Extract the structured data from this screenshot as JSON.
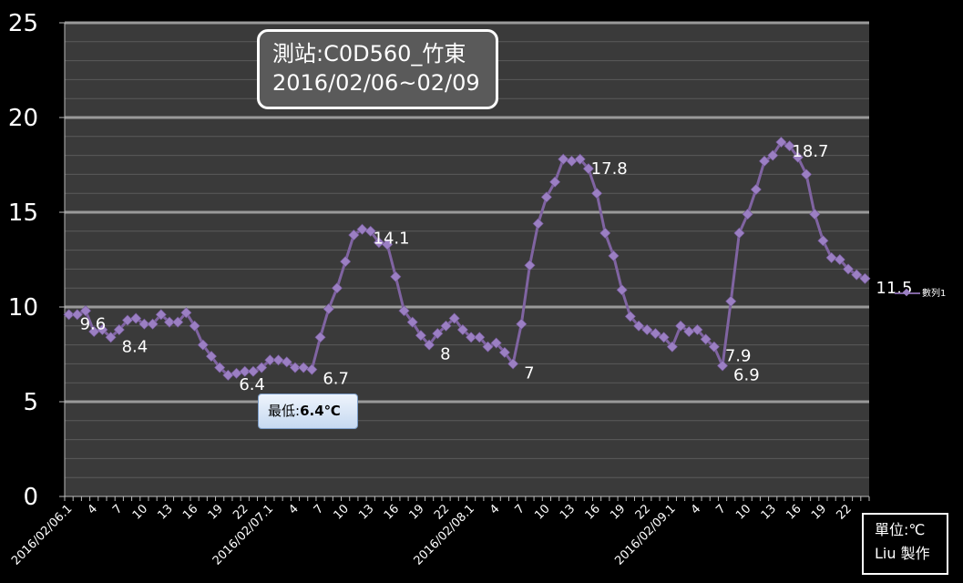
{
  "chart_data": {
    "type": "line",
    "title": "",
    "xlabel": "",
    "ylabel": "",
    "ylim": [
      0,
      25
    ],
    "y_ticks": [
      "0",
      "5",
      "10",
      "15",
      "20",
      "25"
    ],
    "grid": true,
    "x_tick_labels": [
      "2016/02/06.1",
      "4",
      "7",
      "10",
      "13",
      "16",
      "19",
      "22",
      "2016/02/07.1",
      "4",
      "7",
      "10",
      "13",
      "16",
      "19",
      "22",
      "2016/02/08.1",
      "4",
      "7",
      "10",
      "13",
      "16",
      "19",
      "22",
      "2016/02/09.1",
      "4",
      "7",
      "10",
      "13",
      "16",
      "19",
      "22"
    ],
    "series": [
      {
        "name": "數列1",
        "color": "#8064a2",
        "values": [
          9.6,
          9.6,
          9.8,
          8.7,
          8.8,
          8.4,
          8.8,
          9.3,
          9.4,
          9.1,
          9.1,
          9.6,
          9.2,
          9.2,
          9.7,
          9.0,
          8.0,
          7.4,
          6.8,
          6.4,
          6.5,
          6.6,
          6.6,
          6.8,
          7.2,
          7.2,
          7.1,
          6.8,
          6.8,
          6.7,
          8.4,
          9.9,
          11.0,
          12.4,
          13.8,
          14.1,
          14.0,
          13.4,
          13.3,
          11.6,
          9.8,
          9.2,
          8.5,
          8.0,
          8.6,
          9.0,
          9.4,
          8.8,
          8.4,
          8.4,
          7.9,
          8.1,
          7.6,
          7.0,
          9.1,
          12.2,
          14.4,
          15.8,
          16.6,
          17.8,
          17.7,
          17.8,
          17.3,
          16.0,
          13.9,
          12.7,
          10.9,
          9.5,
          9.0,
          8.8,
          8.6,
          8.4,
          7.9,
          9.0,
          8.7,
          8.8,
          8.3,
          7.9,
          6.9,
          10.3,
          13.9,
          14.9,
          16.2,
          17.7,
          18.0,
          18.7,
          18.5,
          17.9,
          17.0,
          14.9,
          13.5,
          12.6,
          12.5,
          12.0,
          11.7,
          11.5
        ],
        "data_labels": [
          {
            "index": 0,
            "text": "9.6"
          },
          {
            "index": 5,
            "text": "8.4"
          },
          {
            "index": 19,
            "text": "6.4"
          },
          {
            "index": 29,
            "text": "6.7"
          },
          {
            "index": 35,
            "text": "14.1"
          },
          {
            "index": 43,
            "text": "8"
          },
          {
            "index": 53,
            "text": "7"
          },
          {
            "index": 61,
            "text": "17.8"
          },
          {
            "index": 77,
            "text": "7.9"
          },
          {
            "index": 78,
            "text": "6.9"
          },
          {
            "index": 85,
            "text": "18.7"
          },
          {
            "index": 95,
            "text": "11.5"
          }
        ]
      }
    ],
    "legend_position": "right"
  },
  "station_box": {
    "line1": "測站:C0D560_竹東",
    "line2": "2016/02/06~02/09"
  },
  "min_box": {
    "prefix": "最低:",
    "value": "6.4℃"
  },
  "unit_box": {
    "line1": "單位:℃",
    "line2": "Liu 製作"
  }
}
